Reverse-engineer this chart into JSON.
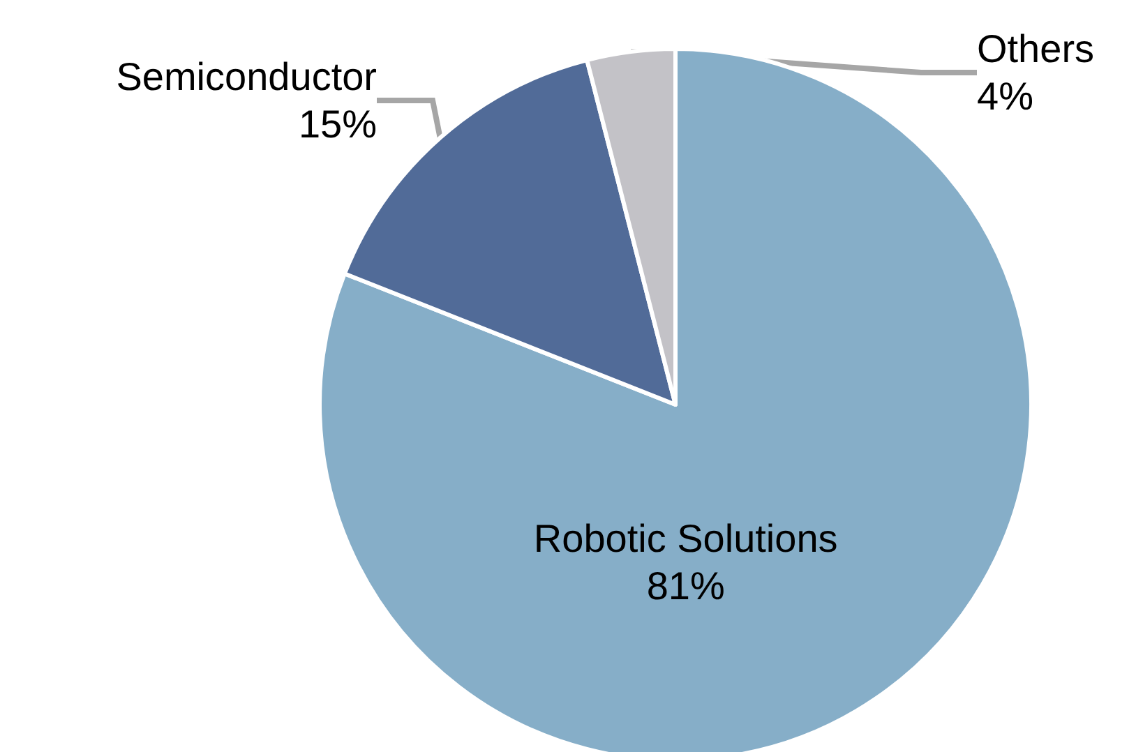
{
  "chart_data": {
    "type": "pie",
    "categories": [
      "Robotic Solutions",
      "Semiconductor",
      "Others"
    ],
    "values": [
      81,
      15,
      4
    ],
    "value_labels": [
      "81%",
      "15%",
      "4%"
    ],
    "colors": [
      "#86aec8",
      "#516b98",
      "#c3c2c7"
    ],
    "legend": false
  }
}
